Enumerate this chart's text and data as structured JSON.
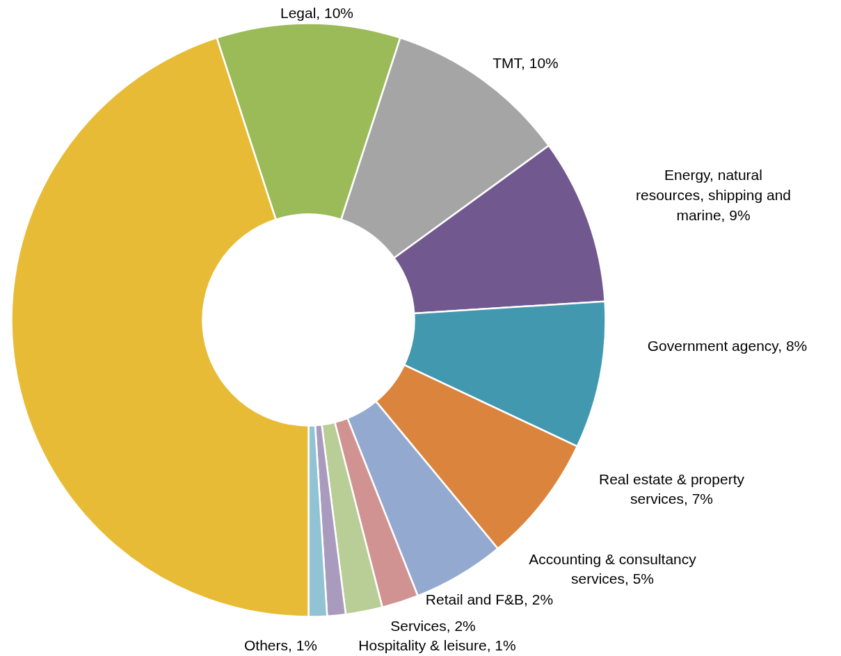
{
  "chart_data": {
    "type": "donut",
    "categories": [
      "Legal",
      "TMT",
      "Energy, natural resources, shipping and marine",
      "Government agency",
      "Real estate & property services",
      "Accounting & consultancy services",
      "Retail and F&B",
      "Services",
      "Hospitality & leisure",
      "Others",
      null
    ],
    "values": [
      10,
      10,
      9,
      8,
      7,
      5,
      2,
      2,
      1,
      1,
      45
    ],
    "value_labels": [
      "10%",
      "10%",
      "9%",
      "8%",
      "7%",
      "5%",
      "2%",
      "2%",
      "1%",
      "1%",
      null
    ],
    "colors": [
      "#9bbb59",
      "#a5a5a5",
      "#71588f",
      "#4198af",
      "#db843d",
      "#93a9cf",
      "#d19392",
      "#b9cd96",
      "#a99bbd",
      "#92c3d4",
      "#e8bb37"
    ]
  }
}
